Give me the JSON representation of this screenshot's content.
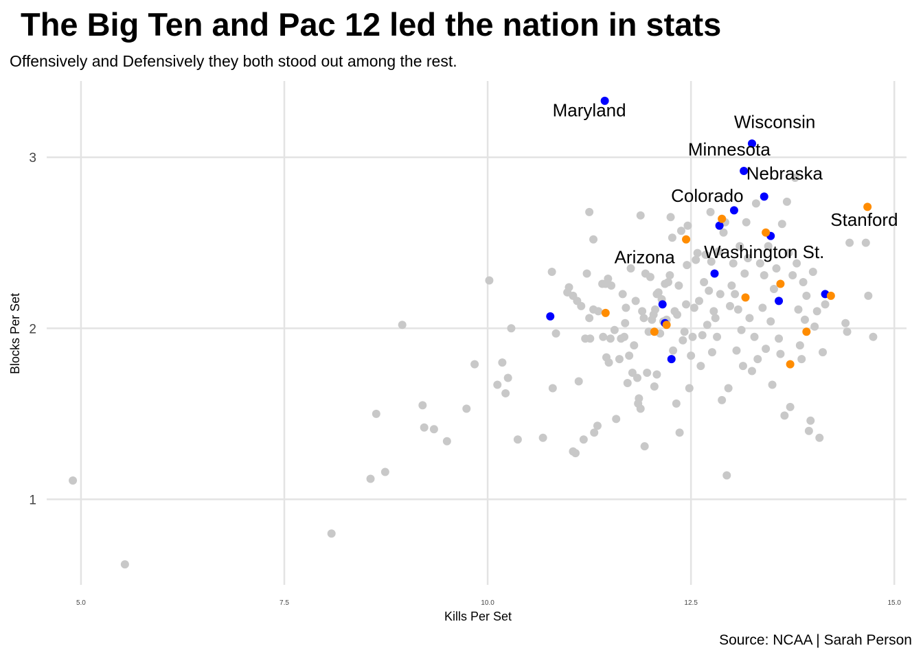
{
  "title": "The Big Ten and Pac 12 led the nation in stats",
  "subtitle": "Offensively and Defensively they both stood out among the rest.",
  "caption": "Source: NCAA | Sarah Person",
  "colors": {
    "other": "#c8c8c8",
    "big_ten": "#0000ff",
    "pac_12": "#ff8c00",
    "grid": "#e3e3e3"
  },
  "chart_data": {
    "type": "scatter",
    "title": "The Big Ten and Pac 12 led the nation in stats",
    "subtitle": "Offensively and Defensively they both stood out among the rest.",
    "xlabel": "Kills Per Set",
    "ylabel": "Blocks Per Set",
    "xlim": [
      4.95,
      15.15
    ],
    "ylim": [
      0.5,
      3.47
    ],
    "x_ticks": [
      "5.0",
      "7.5",
      "10.0",
      "12.5",
      "15.0"
    ],
    "y_ticks": [
      "1",
      "2",
      "3"
    ],
    "grid": true,
    "legend": "none",
    "series": [
      {
        "group": "other",
        "points": [
          [
            4.9,
            1.11
          ],
          [
            5.54,
            0.62
          ],
          [
            8.08,
            0.8
          ],
          [
            8.56,
            1.12
          ],
          [
            8.74,
            1.16
          ],
          [
            8.63,
            1.5
          ],
          [
            8.95,
            2.02
          ],
          [
            9.2,
            1.55
          ],
          [
            9.22,
            1.42
          ],
          [
            9.34,
            1.41
          ],
          [
            9.5,
            1.34
          ],
          [
            9.74,
            1.53
          ],
          [
            9.84,
            1.79
          ],
          [
            10.02,
            2.28
          ],
          [
            10.12,
            1.67
          ],
          [
            10.18,
            1.8
          ],
          [
            10.22,
            1.62
          ],
          [
            10.25,
            1.71
          ],
          [
            10.29,
            2.0
          ],
          [
            10.37,
            1.35
          ],
          [
            10.68,
            1.36
          ],
          [
            10.8,
            1.65
          ],
          [
            10.84,
            1.97
          ],
          [
            10.79,
            2.33
          ],
          [
            10.98,
            2.21
          ],
          [
            11.0,
            2.24
          ],
          [
            11.05,
            2.19
          ],
          [
            11.1,
            2.16
          ],
          [
            11.15,
            2.13
          ],
          [
            11.05,
            1.28
          ],
          [
            11.08,
            1.27
          ],
          [
            11.12,
            1.69
          ],
          [
            11.18,
            1.35
          ],
          [
            11.2,
            1.94
          ],
          [
            11.26,
            1.94
          ],
          [
            11.31,
            1.39
          ],
          [
            11.35,
            1.43
          ],
          [
            11.25,
            2.06
          ],
          [
            11.3,
            2.11
          ],
          [
            11.22,
            2.32
          ],
          [
            11.25,
            2.68
          ],
          [
            11.3,
            2.52
          ],
          [
            11.41,
            2.26
          ],
          [
            11.48,
            2.29
          ],
          [
            11.45,
            2.26
          ],
          [
            11.52,
            2.25
          ],
          [
            11.36,
            2.1
          ],
          [
            11.42,
            1.95
          ],
          [
            11.46,
            1.83
          ],
          [
            11.49,
            1.8
          ],
          [
            11.51,
            1.94
          ],
          [
            11.56,
            1.99
          ],
          [
            11.58,
            1.47
          ],
          [
            11.62,
            1.82
          ],
          [
            11.64,
            1.94
          ],
          [
            11.66,
            2.2
          ],
          [
            11.68,
            1.95
          ],
          [
            11.69,
            2.03
          ],
          [
            11.7,
            2.12
          ],
          [
            11.72,
            1.68
          ],
          [
            11.74,
            1.84
          ],
          [
            11.76,
            2.35
          ],
          [
            11.78,
            1.74
          ],
          [
            11.8,
            1.9
          ],
          [
            11.82,
            2.16
          ],
          [
            11.84,
            1.71
          ],
          [
            11.85,
            1.56
          ],
          [
            11.86,
            1.59
          ],
          [
            11.88,
            1.53
          ],
          [
            11.9,
            2.1
          ],
          [
            11.92,
            2.06
          ],
          [
            11.94,
            2.32
          ],
          [
            11.96,
            1.74
          ],
          [
            11.98,
            1.98
          ],
          [
            11.88,
            2.66
          ],
          [
            12.0,
            2.3
          ],
          [
            12.02,
            2.05
          ],
          [
            12.04,
            2.08
          ],
          [
            12.06,
            2.11
          ],
          [
            12.08,
            2.2
          ],
          [
            12.1,
            2.21
          ],
          [
            11.93,
            1.31
          ],
          [
            12.05,
            1.66
          ],
          [
            12.08,
            1.73
          ],
          [
            12.12,
            1.97
          ],
          [
            12.14,
            2.17
          ],
          [
            12.16,
            2.04
          ],
          [
            12.18,
            2.26
          ],
          [
            12.2,
            2.05
          ],
          [
            12.22,
            2.27
          ],
          [
            12.24,
            2.31
          ],
          [
            12.25,
            2.65
          ],
          [
            12.27,
            2.53
          ],
          [
            12.28,
            1.87
          ],
          [
            12.3,
            2.1
          ],
          [
            12.32,
            1.56
          ],
          [
            12.33,
            2.08
          ],
          [
            12.35,
            2.25
          ],
          [
            12.36,
            1.39
          ],
          [
            12.38,
            2.57
          ],
          [
            12.4,
            1.93
          ],
          [
            12.42,
            1.98
          ],
          [
            12.44,
            2.14
          ],
          [
            12.45,
            2.37
          ],
          [
            12.46,
            2.6
          ],
          [
            12.48,
            1.65
          ],
          [
            12.5,
            1.84
          ],
          [
            12.52,
            1.95
          ],
          [
            12.54,
            2.12
          ],
          [
            12.56,
            2.4
          ],
          [
            12.58,
            2.44
          ],
          [
            12.6,
            2.16
          ],
          [
            12.62,
            1.78
          ],
          [
            12.64,
            1.96
          ],
          [
            12.66,
            2.27
          ],
          [
            12.68,
            2.43
          ],
          [
            12.7,
            2.02
          ],
          [
            12.72,
            2.22
          ],
          [
            12.74,
            2.68
          ],
          [
            12.75,
            2.39
          ],
          [
            12.76,
            1.86
          ],
          [
            12.78,
            2.1
          ],
          [
            12.8,
            2.06
          ],
          [
            12.82,
            1.95
          ],
          [
            12.84,
            2.45
          ],
          [
            12.86,
            2.2
          ],
          [
            12.88,
            1.58
          ],
          [
            12.9,
            2.56
          ],
          [
            12.92,
            2.62
          ],
          [
            12.94,
            1.14
          ],
          [
            12.96,
            1.65
          ],
          [
            12.98,
            2.13
          ],
          [
            13.0,
            2.25
          ],
          [
            13.02,
            2.38
          ],
          [
            13.04,
            2.2
          ],
          [
            13.06,
            1.87
          ],
          [
            13.08,
            2.11
          ],
          [
            13.1,
            2.48
          ],
          [
            13.12,
            1.99
          ],
          [
            13.14,
            1.78
          ],
          [
            13.16,
            2.32
          ],
          [
            13.18,
            2.62
          ],
          [
            13.2,
            2.41
          ],
          [
            13.22,
            2.06
          ],
          [
            13.25,
            1.75
          ],
          [
            13.28,
            1.95
          ],
          [
            13.3,
            2.73
          ],
          [
            13.32,
            1.82
          ],
          [
            13.35,
            2.38
          ],
          [
            13.38,
            2.12
          ],
          [
            13.4,
            2.31
          ],
          [
            13.42,
            1.88
          ],
          [
            13.45,
            2.48
          ],
          [
            13.48,
            2.04
          ],
          [
            13.5,
            1.67
          ],
          [
            13.52,
            2.23
          ],
          [
            13.55,
            2.35
          ],
          [
            13.58,
            1.94
          ],
          [
            13.6,
            1.85
          ],
          [
            13.62,
            2.61
          ],
          [
            13.65,
            1.49
          ],
          [
            13.68,
            2.74
          ],
          [
            13.7,
            2.44
          ],
          [
            13.72,
            1.54
          ],
          [
            13.75,
            2.31
          ],
          [
            13.78,
            2.88
          ],
          [
            13.8,
            2.38
          ],
          [
            13.82,
            2.11
          ],
          [
            13.84,
            1.9
          ],
          [
            13.86,
            1.82
          ],
          [
            13.88,
            2.27
          ],
          [
            13.9,
            2.05
          ],
          [
            13.92,
            2.19
          ],
          [
            13.95,
            1.4
          ],
          [
            13.97,
            1.46
          ],
          [
            14.0,
            2.33
          ],
          [
            14.02,
            2.01
          ],
          [
            14.05,
            2.1
          ],
          [
            14.08,
            1.36
          ],
          [
            14.12,
            1.86
          ],
          [
            14.15,
            2.14
          ],
          [
            14.4,
            2.03
          ],
          [
            14.42,
            1.98
          ],
          [
            14.45,
            2.5
          ],
          [
            14.65,
            2.5
          ],
          [
            14.68,
            2.19
          ],
          [
            14.74,
            1.95
          ]
        ]
      },
      {
        "group": "big_ten",
        "points": [
          [
            10.77,
            2.07
          ],
          [
            11.44,
            3.33
          ],
          [
            12.15,
            2.14
          ],
          [
            12.18,
            2.03
          ],
          [
            12.26,
            1.82
          ],
          [
            12.79,
            2.32
          ],
          [
            12.85,
            2.6
          ],
          [
            13.03,
            2.69
          ],
          [
            13.15,
            2.92
          ],
          [
            13.25,
            3.08
          ],
          [
            13.4,
            2.77
          ],
          [
            13.48,
            2.54
          ],
          [
            13.58,
            2.16
          ],
          [
            14.15,
            2.2
          ]
        ]
      },
      {
        "group": "pac_12",
        "points": [
          [
            11.45,
            2.09
          ],
          [
            12.05,
            1.98
          ],
          [
            12.2,
            2.02
          ],
          [
            12.44,
            2.52
          ],
          [
            12.88,
            2.64
          ],
          [
            13.17,
            2.18
          ],
          [
            13.42,
            2.56
          ],
          [
            13.6,
            2.26
          ],
          [
            13.72,
            1.79
          ],
          [
            13.92,
            1.98
          ],
          [
            14.22,
            2.19
          ],
          [
            14.67,
            2.71
          ]
        ]
      }
    ],
    "annotations": [
      {
        "text": "Maryland",
        "x": 11.25,
        "y": 3.24
      },
      {
        "text": "Wisconsin",
        "x": 13.53,
        "y": 3.17
      },
      {
        "text": "Minnesota",
        "x": 12.97,
        "y": 3.01
      },
      {
        "text": "Nebraska",
        "x": 13.65,
        "y": 2.87
      },
      {
        "text": "Colorado",
        "x": 12.7,
        "y": 2.74
      },
      {
        "text": "Stanford",
        "x": 14.63,
        "y": 2.6
      },
      {
        "text": "Washington St.",
        "x": 13.4,
        "y": 2.41
      },
      {
        "text": "Arizona",
        "x": 11.93,
        "y": 2.38
      }
    ]
  }
}
